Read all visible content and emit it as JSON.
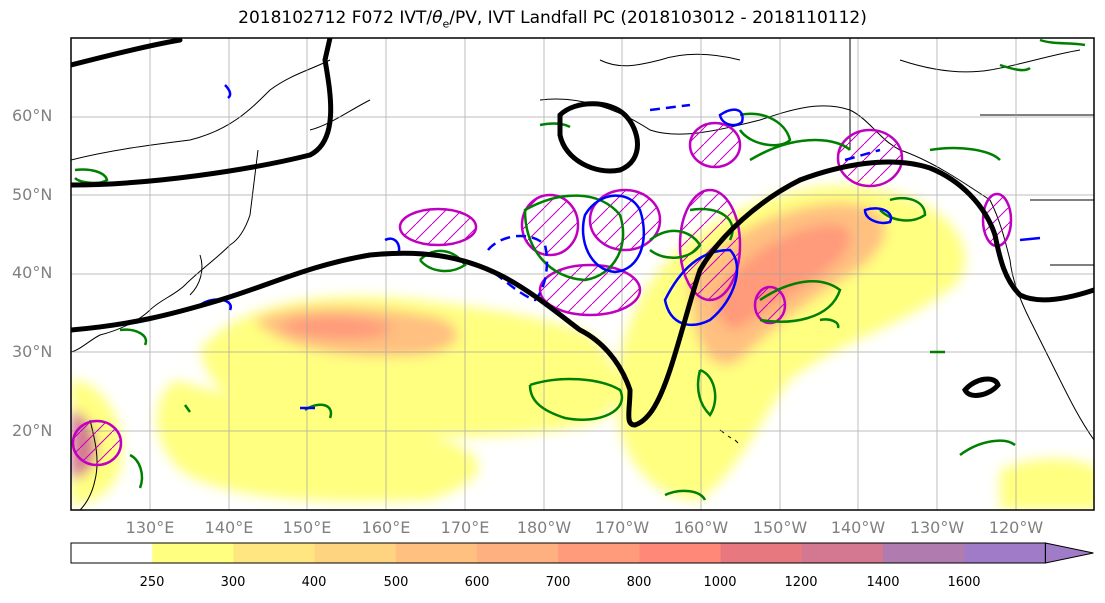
{
  "title": "2018102712 F072 IVT/θe/PV, IVT Landfall PC (2018103012 - 2018110112)",
  "title_parts": {
    "pre": "2018102712 F072 IVT/",
    "theta": "θ",
    "sub": "e",
    "post": "/PV, IVT Landfall PC (2018103012 - 2018110112)"
  },
  "lat_labels": [
    "60°N",
    "50°N",
    "40°N",
    "30°N",
    "20°N"
  ],
  "lon_labels": [
    "130°E",
    "140°E",
    "150°E",
    "160°E",
    "170°E",
    "180°W",
    "170°W",
    "160°W",
    "150°W",
    "140°W",
    "130°W",
    "120°W"
  ],
  "colorbar": {
    "ticks": [
      "250",
      "300",
      "400",
      "500",
      "600",
      "700",
      "800",
      "1000",
      "1200",
      "1400",
      "1600"
    ],
    "colors": [
      "#ffffff",
      "#ffff80",
      "#ffe680",
      "#ffd480",
      "#ffc080",
      "#ffb080",
      "#ff9a7a",
      "#ff8878",
      "#e87880",
      "#d37890",
      "#b07cb0",
      "#a07cc8"
    ]
  },
  "colors": {
    "jet_contour": "#000000",
    "pv_green": "#008000",
    "pv_blue": "#0000ff",
    "magenta": "#c000c0",
    "coast": "#000000"
  }
}
